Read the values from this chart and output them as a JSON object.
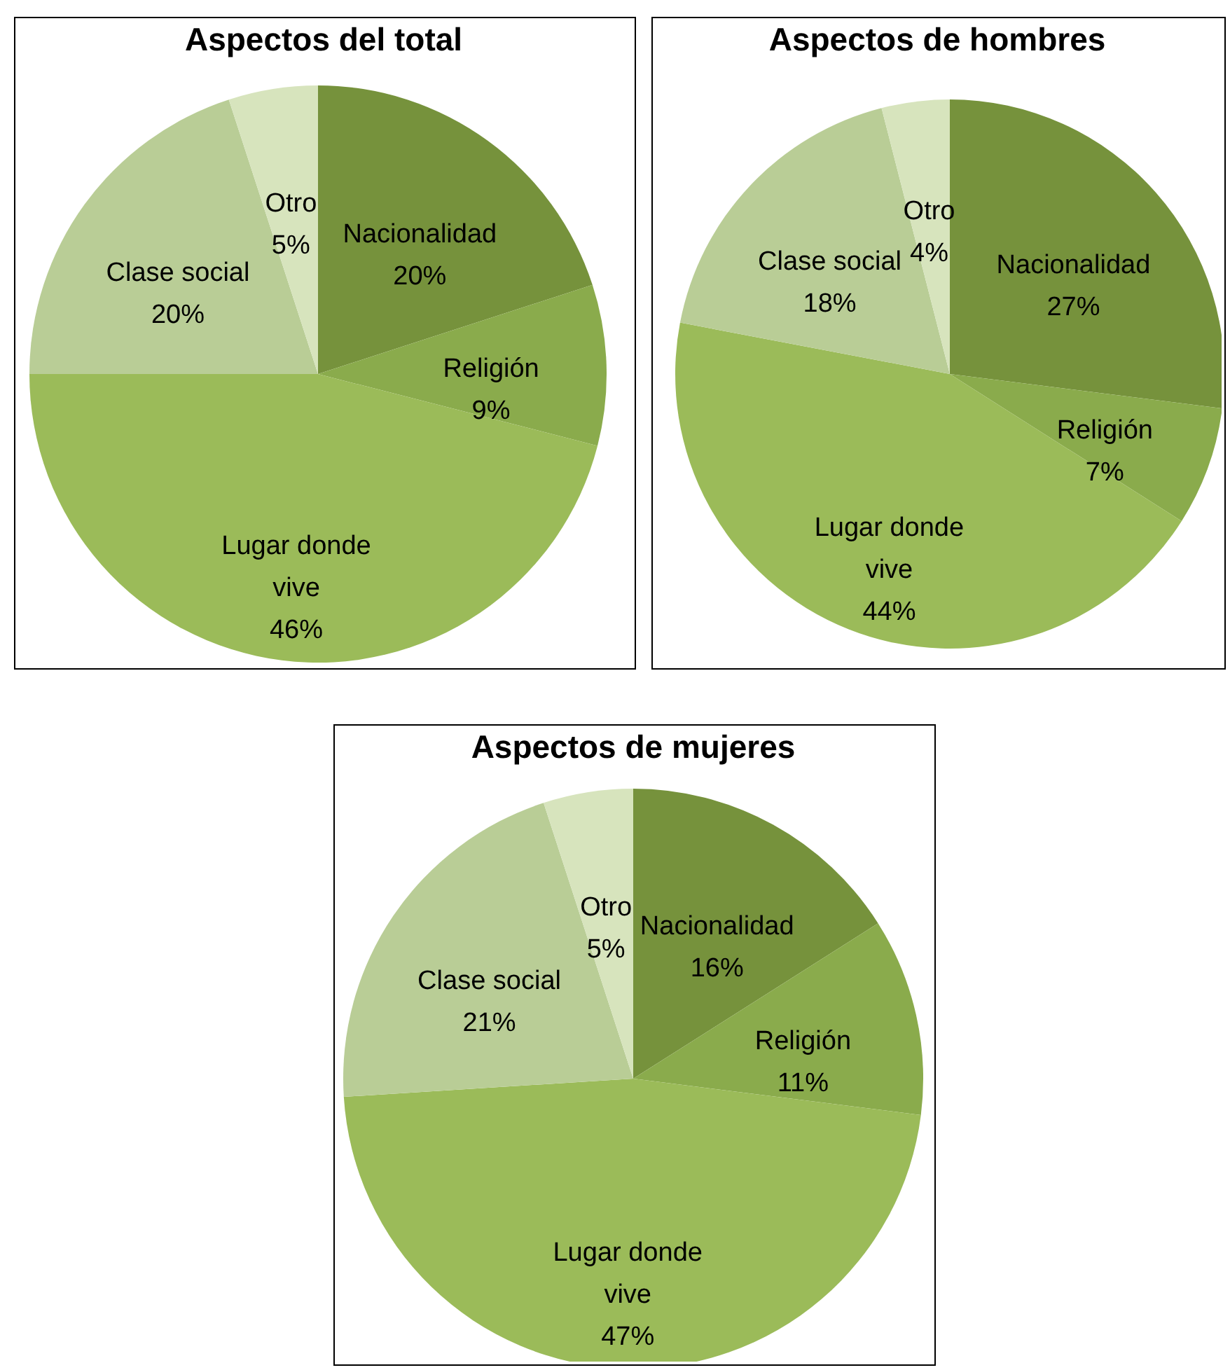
{
  "chart_data": [
    {
      "type": "pie",
      "title": "Aspectos del total",
      "categories": [
        "Nacionalidad",
        "Religión",
        "Lugar donde vive",
        "Clase social",
        "Otro"
      ],
      "values": [
        20,
        9,
        46,
        20,
        5
      ],
      "value_labels": [
        "20%",
        "9%",
        "46%",
        "20%",
        "5%"
      ],
      "colors": [
        "#76923c",
        "#8aab4c",
        "#9bbb59",
        "#b9cd96",
        "#d7e4bd"
      ]
    },
    {
      "type": "pie",
      "title": "Aspectos de hombres",
      "categories": [
        "Nacionalidad",
        "Religión",
        "Lugar donde vive",
        "Clase social",
        "Otro"
      ],
      "values": [
        27,
        7,
        44,
        18,
        4
      ],
      "value_labels": [
        "27%",
        "7%",
        "44%",
        "18%",
        "4%"
      ],
      "colors": [
        "#76923c",
        "#8aab4c",
        "#9bbb59",
        "#b9cd96",
        "#d7e4bd"
      ]
    },
    {
      "type": "pie",
      "title": "Aspectos de mujeres",
      "categories": [
        "Nacionalidad",
        "Religión",
        "Lugar donde vive",
        "Clase social",
        "Otro"
      ],
      "values": [
        16,
        11,
        47,
        21,
        5
      ],
      "value_labels": [
        "16%",
        "11%",
        "47%",
        "21%",
        "5%"
      ],
      "colors": [
        "#76923c",
        "#8aab4c",
        "#9bbb59",
        "#b9cd96",
        "#d7e4bd"
      ]
    }
  ]
}
